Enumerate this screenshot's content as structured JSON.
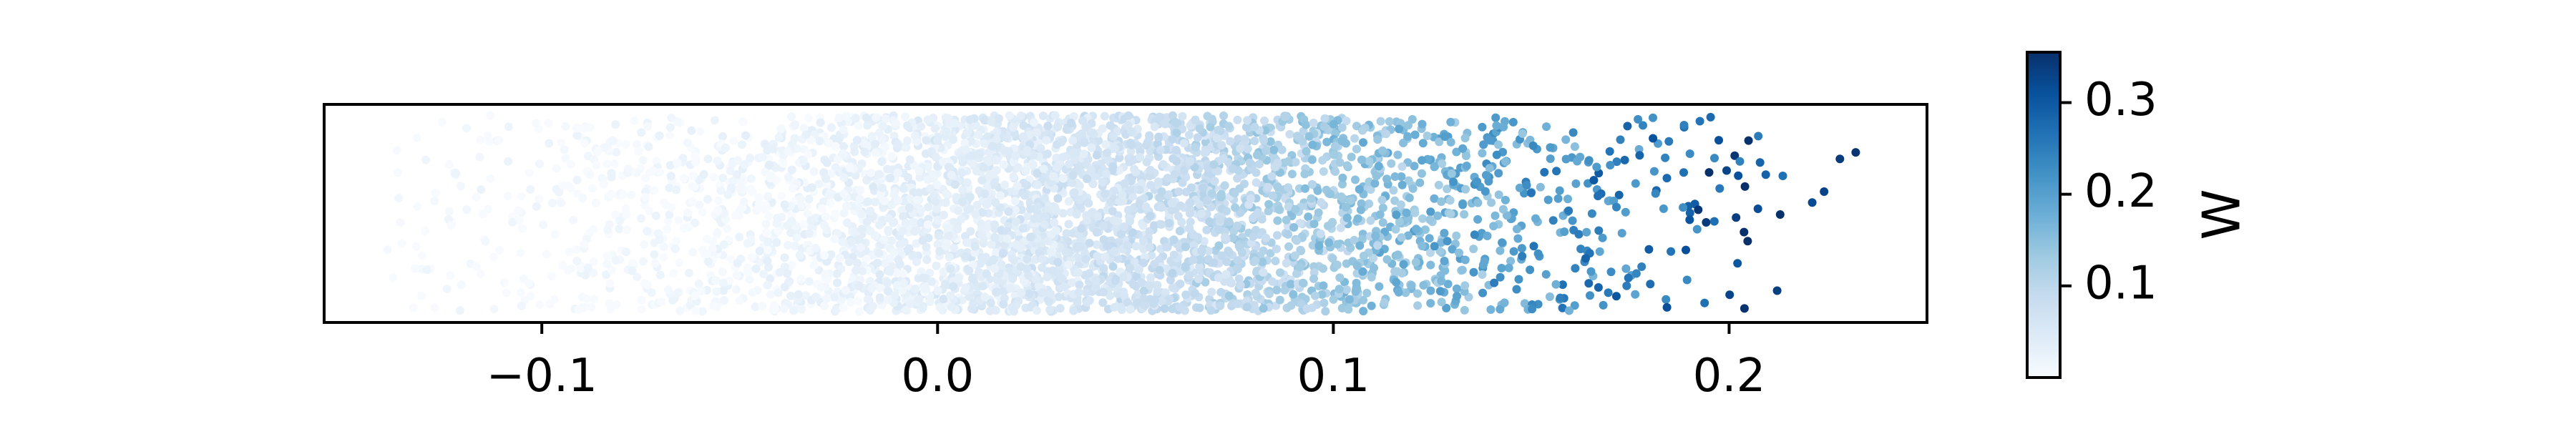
{
  "chart_data": {
    "type": "scatter",
    "title": "",
    "xlabel": "",
    "ylabel": "",
    "xlim": [
      -0.155,
      0.25
    ],
    "x_ticks": [
      -0.1,
      0.0,
      0.1,
      0.2
    ],
    "x_tick_labels": [
      "−0.1",
      "0.0",
      "0.1",
      "0.2"
    ],
    "y_ticks_visible": false,
    "grid": false,
    "legend": "none",
    "points_description": "Dense jittered strip of about 4000 points; x spans roughly -0.14 to 0.23, y is random within the strip; color encodes W, increasing with x.",
    "approx_point_count": 4000,
    "x_range_of_points": [
      -0.14,
      0.233
    ],
    "outlier_points": [
      {
        "x": 0.221,
        "y_frac": 0.55,
        "w": 0.32
      },
      {
        "x": 0.224,
        "y_frac": 0.6,
        "w": 0.33
      },
      {
        "x": 0.228,
        "y_frac": 0.75,
        "w": 0.34
      },
      {
        "x": 0.232,
        "y_frac": 0.78,
        "w": 0.35
      }
    ],
    "colorbar": {
      "label": "W",
      "colormap": "Blues",
      "range": [
        0.0,
        0.355
      ],
      "ticks": [
        0.1,
        0.2,
        0.3
      ],
      "tick_labels": [
        "0.1",
        "0.2",
        "0.3"
      ],
      "color_low": "#f7fbff",
      "color_high": "#08306b"
    }
  }
}
